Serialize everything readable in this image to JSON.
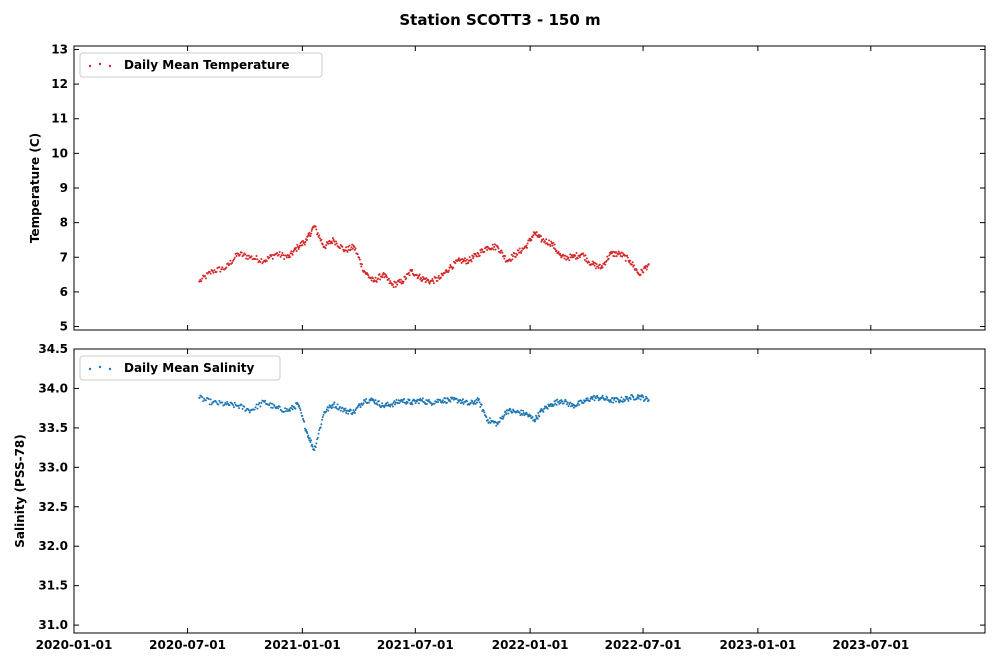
{
  "chart_data": [
    {
      "type": "scatter",
      "title": "Station SCOTT3 - 150 m",
      "ylabel": "Temperature (C)",
      "xlabel": "",
      "xlim": [
        "2020-01-01",
        "2023-12-31"
      ],
      "ylim": [
        4.9,
        13.1
      ],
      "yticks": [
        5,
        6,
        7,
        8,
        9,
        10,
        11,
        12,
        13
      ],
      "xticks": [
        "2020-01",
        "2020-07",
        "2021-01",
        "2021-07",
        "2022-01",
        "2022-07",
        "2023-01",
        "2023-07"
      ],
      "show_xtick_labels": false,
      "grid": false,
      "legend_position": "top-left",
      "series": [
        {
          "name": "Daily Mean Temperature",
          "color": "#d62728",
          "x": [
            "2020-07-20",
            "2020-08-10",
            "2020-09-01",
            "2020-09-20",
            "2020-10-10",
            "2020-11-01",
            "2020-11-20",
            "2020-12-10",
            "2020-12-25",
            "2021-01-08",
            "2021-01-20",
            "2021-02-05",
            "2021-02-20",
            "2021-03-10",
            "2021-03-25",
            "2021-04-10",
            "2021-04-25",
            "2021-05-10",
            "2021-05-25",
            "2021-06-10",
            "2021-06-25",
            "2021-07-10",
            "2021-07-25",
            "2021-08-10",
            "2021-08-25",
            "2021-09-10",
            "2021-09-25",
            "2021-10-10",
            "2021-10-25",
            "2021-11-10",
            "2021-11-25",
            "2021-12-10",
            "2021-12-25",
            "2022-01-08",
            "2022-01-20",
            "2022-02-05",
            "2022-02-20",
            "2022-03-10",
            "2022-03-25",
            "2022-04-10",
            "2022-04-25",
            "2022-05-10",
            "2022-05-25",
            "2022-06-10",
            "2022-06-25",
            "2022-07-10"
          ],
          "y": [
            6.3,
            6.6,
            6.7,
            7.1,
            7.0,
            6.9,
            7.1,
            7.0,
            7.3,
            7.5,
            7.9,
            7.3,
            7.5,
            7.2,
            7.3,
            6.6,
            6.3,
            6.5,
            6.2,
            6.3,
            6.6,
            6.4,
            6.3,
            6.4,
            6.7,
            6.9,
            6.9,
            7.1,
            7.3,
            7.3,
            6.9,
            7.1,
            7.3,
            7.7,
            7.5,
            7.4,
            7.0,
            7.0,
            7.1,
            6.8,
            6.7,
            7.1,
            7.1,
            6.9,
            6.5,
            6.8
          ]
        }
      ]
    },
    {
      "type": "scatter",
      "title": "",
      "ylabel": "Salinity (PSS-78)",
      "xlabel": "",
      "xlim": [
        "2020-01-01",
        "2023-12-31"
      ],
      "ylim": [
        30.9,
        34.5
      ],
      "yticks": [
        31.0,
        31.5,
        32.0,
        32.5,
        33.0,
        33.5,
        34.0,
        34.5
      ],
      "xticks": [
        "2020-01",
        "2020-07",
        "2021-01",
        "2021-07",
        "2022-01",
        "2022-07",
        "2023-01",
        "2023-07"
      ],
      "show_xtick_labels": true,
      "grid": false,
      "legend_position": "top-left",
      "series": [
        {
          "name": "Daily Mean Salinity",
          "color": "#1f77b4",
          "x": [
            "2020-07-20",
            "2020-08-10",
            "2020-09-01",
            "2020-09-20",
            "2020-10-10",
            "2020-11-01",
            "2020-11-20",
            "2020-12-10",
            "2020-12-25",
            "2021-01-08",
            "2021-01-20",
            "2021-02-05",
            "2021-02-20",
            "2021-03-10",
            "2021-03-25",
            "2021-04-10",
            "2021-04-25",
            "2021-05-10",
            "2021-05-25",
            "2021-06-10",
            "2021-06-25",
            "2021-07-10",
            "2021-07-25",
            "2021-08-10",
            "2021-08-25",
            "2021-09-10",
            "2021-09-25",
            "2021-10-10",
            "2021-10-25",
            "2021-11-10",
            "2021-11-25",
            "2021-12-10",
            "2021-12-25",
            "2022-01-08",
            "2022-01-20",
            "2022-02-05",
            "2022-02-20",
            "2022-03-10",
            "2022-03-25",
            "2022-04-10",
            "2022-04-25",
            "2022-05-10",
            "2022-05-25",
            "2022-06-10",
            "2022-06-25",
            "2022-07-10"
          ],
          "y": [
            33.88,
            33.82,
            33.8,
            33.78,
            33.72,
            33.83,
            33.75,
            33.72,
            33.8,
            33.45,
            33.22,
            33.7,
            33.8,
            33.72,
            33.7,
            33.85,
            33.85,
            33.78,
            33.8,
            33.85,
            33.82,
            33.85,
            33.82,
            33.85,
            33.85,
            33.85,
            33.8,
            33.85,
            33.6,
            33.55,
            33.72,
            33.7,
            33.68,
            33.6,
            33.72,
            33.8,
            33.85,
            33.78,
            33.82,
            33.88,
            33.88,
            33.85,
            33.85,
            33.88,
            33.9,
            33.85
          ]
        }
      ]
    }
  ]
}
